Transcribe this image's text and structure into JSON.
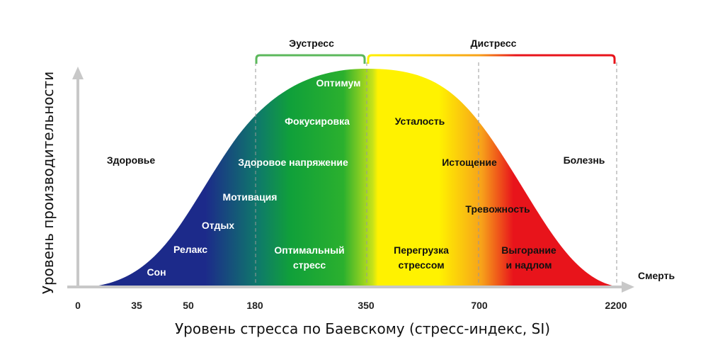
{
  "chart_data": {
    "type": "area",
    "xlabel": "Уровень стресса по Баевскому (стресс-индекс, SI)",
    "ylabel": "Уровень производительности",
    "x_ticks": [
      "0",
      "35",
      "50",
      "180",
      "350",
      "700",
      "2200"
    ],
    "end_label": "Смерть",
    "bands": [
      {
        "name": "Эустресс",
        "from": "180",
        "to": "350",
        "color": "#5cb85c"
      },
      {
        "name": "Дистресс",
        "from": "350",
        "to": "2200",
        "color": "#e8141b"
      }
    ],
    "colors": {
      "blue": "#1c2a8a",
      "green": "#10a03a",
      "yellow": "#fff200",
      "orange": "#f7a21a",
      "red": "#e8141b"
    },
    "annotations": {
      "son": "Сон",
      "relaks": "Релакс",
      "otdyh": "Отдых",
      "motivaciya": "Мотивация",
      "zdorovoe": "Здоровое напряжение",
      "fokus": "Фокусировка",
      "optimum": "Оптимум",
      "optimalny_1": "Оптимальный",
      "optimalny_2": "стресс",
      "zdorovye": "Здоровье",
      "ustalost": "Усталость",
      "istoschenie": "Истощение",
      "trevozhnost": "Тревожность",
      "peregruzka_1": "Перегрузка",
      "peregruzka_2": "стрессом",
      "vygoranie_1": "Выгорание",
      "vygoranie_2": "и надлом",
      "bolezn": "Болезнь"
    }
  }
}
